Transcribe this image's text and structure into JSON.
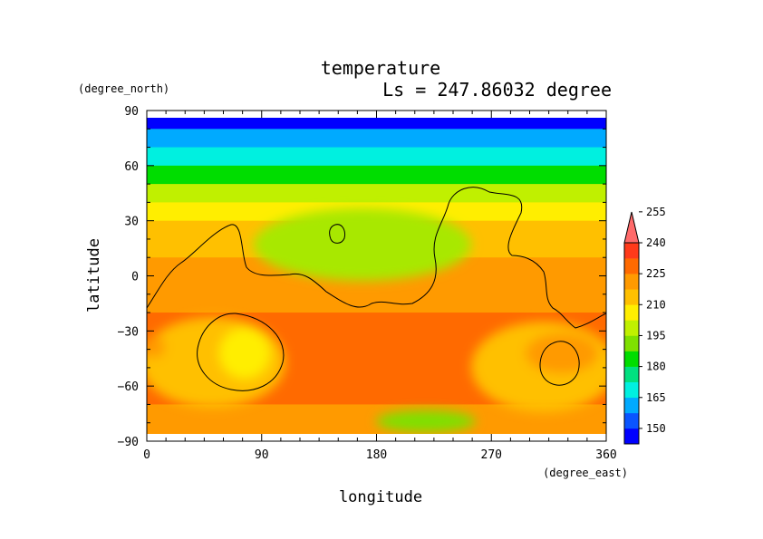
{
  "chart_data": {
    "type": "heatmap",
    "title": "temperature",
    "subtitle": "Ls = 247.86032 degree",
    "xlabel": "longitude",
    "ylabel": "latitude",
    "x_unit": "(degree_east)",
    "y_unit": "(degree_north)",
    "xlim": [
      0,
      360
    ],
    "ylim": [
      -90,
      90
    ],
    "x_ticks": [
      "0",
      "90",
      "180",
      "270",
      "360"
    ],
    "y_ticks": [
      "90",
      "60",
      "30",
      "0",
      "−30",
      "−60",
      "−90"
    ],
    "x_tick_values": [
      0,
      90,
      180,
      270,
      360
    ],
    "y_tick_values": [
      90,
      60,
      30,
      0,
      -30,
      -60,
      -90
    ],
    "colorbar": {
      "levels": [
        150,
        165,
        180,
        195,
        210,
        225,
        240,
        255
      ],
      "tick_labels": [
        "150",
        "165",
        "180",
        "195",
        "210",
        "225",
        "240",
        "255"
      ],
      "colors": [
        "#0000ff",
        "#0a55ff",
        "#00aaff",
        "#00f0e0",
        "#00e080",
        "#00dd00",
        "#7fe000",
        "#c0f000",
        "#ffee00",
        "#ffc000",
        "#ff9a00",
        "#ff6a00",
        "#ff3a1a",
        "#ff6a6a"
      ]
    },
    "lat_bands": [
      {
        "lat": 85,
        "value": 148
      },
      {
        "lat": 75,
        "value": 158
      },
      {
        "lat": 65,
        "value": 172
      },
      {
        "lat": 55,
        "value": 184
      },
      {
        "lat": 45,
        "value": 195
      },
      {
        "lat": 35,
        "value": 203
      },
      {
        "lat": 25,
        "value": 210
      },
      {
        "lat": 15,
        "value": 215
      },
      {
        "lat": 5,
        "value": 218
      },
      {
        "lat": -5,
        "value": 220
      },
      {
        "lat": -15,
        "value": 224
      },
      {
        "lat": -25,
        "value": 227
      },
      {
        "lat": -35,
        "value": 229
      },
      {
        "lat": -45,
        "value": 229
      },
      {
        "lat": -55,
        "value": 228
      },
      {
        "lat": -65,
        "value": 226
      },
      {
        "lat": -75,
        "value": 224
      },
      {
        "lat": -85,
        "value": 222
      }
    ]
  }
}
